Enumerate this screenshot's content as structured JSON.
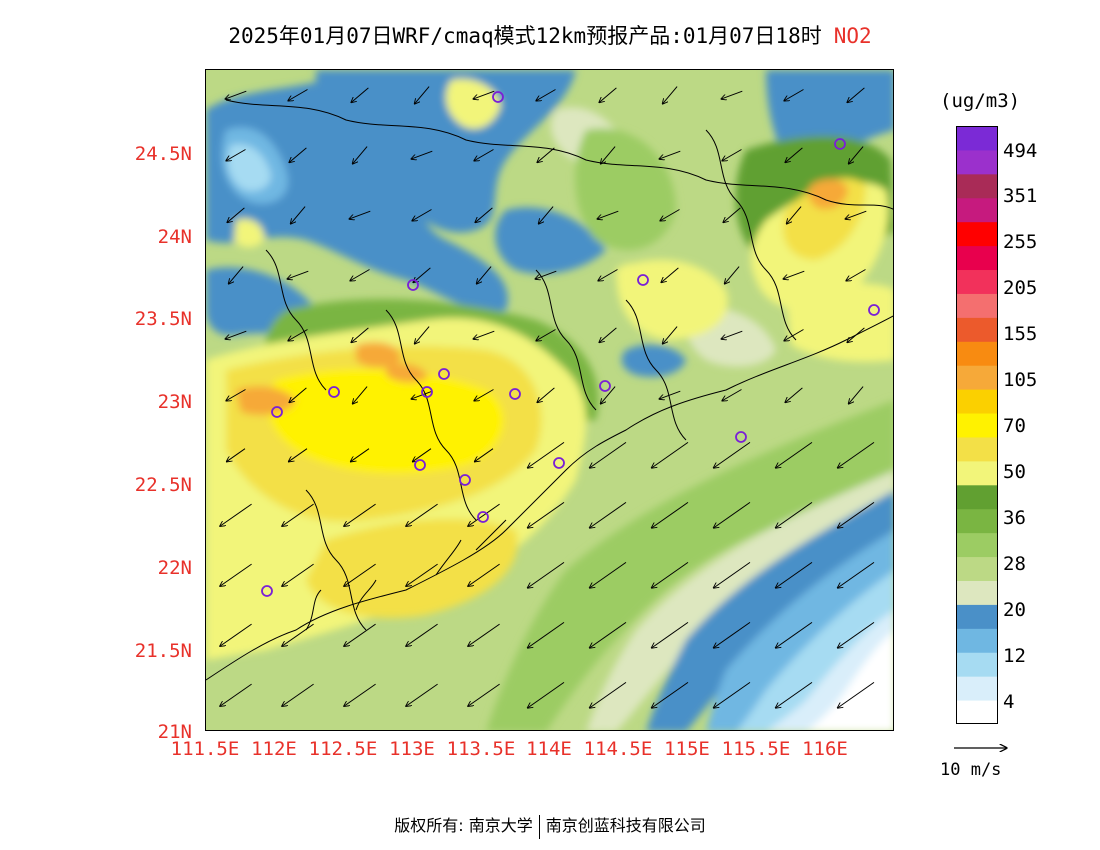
{
  "title": {
    "text": "2025年01月07日WRF/cmaq模式12km预报产品:01月07日18时",
    "pollutant": "NO2",
    "pollutant_color": "#e8312a"
  },
  "axes": {
    "y_ticks": [
      "24.5N",
      "24N",
      "23.5N",
      "23N",
      "22.5N",
      "22N",
      "21.5N",
      "21N"
    ],
    "x_ticks": [
      "111.5E",
      "112E",
      "112.5E",
      "113E",
      "113.5E",
      "114E",
      "114.5E",
      "115E",
      "115.5E",
      "116E"
    ],
    "tick_color": "#e8312a"
  },
  "colorbar": {
    "unit": "(ug/m3)",
    "bins": [
      {
        "color": "#ffffff"
      },
      {
        "color": "#d9eefa"
      },
      {
        "color": "#a6dbf2"
      },
      {
        "color": "#6fb7e2"
      },
      {
        "color": "#4a90c8"
      },
      {
        "color": "#dde7bf"
      },
      {
        "color": "#bcd985"
      },
      {
        "color": "#9ccc63"
      },
      {
        "color": "#7ab542"
      },
      {
        "color": "#61a031"
      },
      {
        "color": "#f2f57a"
      },
      {
        "color": "#f3e047"
      },
      {
        "color": "#fff200"
      },
      {
        "color": "#fbd000"
      },
      {
        "color": "#f6a939"
      },
      {
        "color": "#f88b11"
      },
      {
        "color": "#ec5a2c"
      },
      {
        "color": "#f46f6f"
      },
      {
        "color": "#f2315b"
      },
      {
        "color": "#e8004d"
      },
      {
        "color": "#ff0000"
      },
      {
        "color": "#c61a7e"
      },
      {
        "color": "#a92b57"
      },
      {
        "color": "#9b30cc"
      },
      {
        "color": "#7b2ad6"
      }
    ],
    "labels": [
      "4",
      "12",
      "20",
      "28",
      "36",
      "50",
      "70",
      "105",
      "155",
      "205",
      "255",
      "351",
      "494"
    ]
  },
  "wind_reference": {
    "label": "10 m/s"
  },
  "stations_color": "#7a1fd6",
  "copyright": {
    "left": "版权所有: 南京大学",
    "right": "南京创蓝科技有限公司"
  }
}
